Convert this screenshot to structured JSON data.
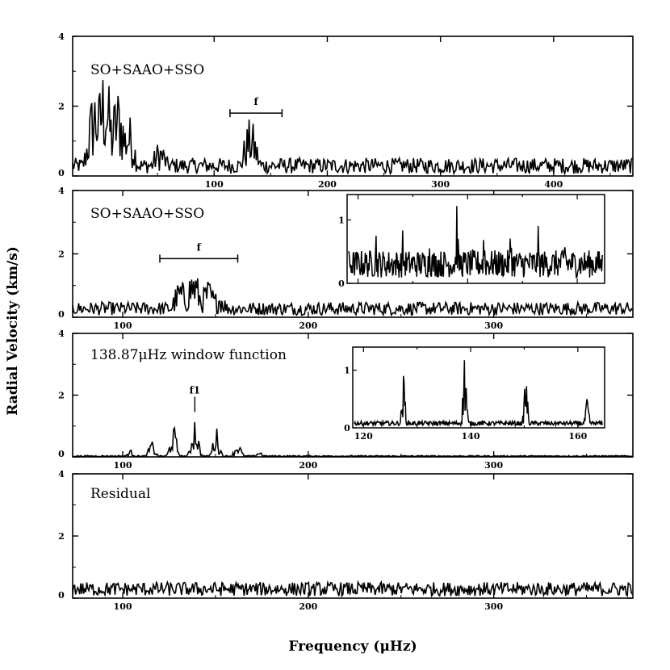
{
  "chart_data": {
    "type": "line",
    "xlabel": "Frequency (μHz)",
    "ylabel": "Radial Velocity (km/s)",
    "panels": [
      {
        "title": "SO+SAAO+SSO",
        "xlim": [
          -25,
          470
        ],
        "ylim": [
          0,
          4
        ],
        "xticks": [
          100,
          200,
          300,
          400
        ],
        "ytick_labels": [
          "0",
          "2",
          "4"
        ],
        "bracket": {
          "label": "f",
          "x": [
            114,
            160
          ],
          "y": 1.8
        },
        "series": [
          {
            "baseline": 0.45,
            "peaks": [
              [
                -5,
                2.4
              ],
              [
                3,
                2.9
              ],
              [
                15,
                2.3
              ],
              [
                24,
                1.6
              ],
              [
                52,
                0.9
              ],
              [
                132,
                1.45
              ]
            ]
          }
        ]
      },
      {
        "title": "SO+SAAO+SSO",
        "xlim": [
          73,
          375
        ],
        "ylim": [
          0,
          4
        ],
        "xticks": [
          100,
          200,
          300
        ],
        "ytick_labels": [
          "0",
          "2",
          "4"
        ],
        "bracket": {
          "label": "f",
          "x": [
            120,
            162
          ],
          "y": 1.85
        },
        "series": [
          {
            "baseline": 0.42,
            "peaks": [
              [
                138,
                1.4
              ],
              [
                131,
                1.05
              ],
              [
                146,
                1.05
              ],
              [
                152,
                0.8
              ]
            ]
          }
        ],
        "inset": {
          "xlim": [
            118,
            165
          ],
          "ylim": [
            0,
            1.4
          ],
          "ytick_labels": [
            "0",
            "1"
          ],
          "series": [
            {
              "peaks": [
                [
                  123,
                  0.85
                ],
                [
                  128,
                  0.75
                ],
                [
                  133,
                  0.85
                ],
                [
                  138,
                  1.25
                ],
                [
                  143,
                  0.9
                ],
                [
                  148,
                  0.95
                ],
                [
                  153,
                  0.8
                ],
                [
                  158,
                  0.85
                ]
              ]
            }
          ]
        }
      },
      {
        "title": "138.87μHz window function",
        "xlim": [
          73,
          375
        ],
        "ylim": [
          0,
          4
        ],
        "xticks": [
          100,
          200,
          300
        ],
        "ytick_labels": [
          "0",
          "2",
          "4"
        ],
        "marker": {
          "label": "f1",
          "x": 138.87
        },
        "series": [
          {
            "baseline": 0.04,
            "peaks": [
              [
                138.87,
                1.25
              ],
              [
                127.3,
                0.9
              ],
              [
                150.4,
                0.85
              ],
              [
                115.7,
                0.45
              ],
              [
                162.0,
                0.45
              ],
              [
                104.2,
                0.2
              ],
              [
                173.6,
                0.18
              ]
            ]
          }
        ],
        "inset": {
          "xlim": [
            118,
            165
          ],
          "ylim": [
            0,
            1.4
          ],
          "xtick_labels": [
            "120",
            "140",
            "160"
          ],
          "ytick_labels": [
            "0",
            "1"
          ],
          "series": [
            {
              "peaks": [
                [
                  127.3,
                  0.82
                ],
                [
                  138.87,
                  1.25
                ],
                [
                  150.4,
                  0.85
                ],
                [
                  162.0,
                  0.45
                ]
              ]
            }
          ]
        }
      },
      {
        "title": "Residual",
        "xlim": [
          73,
          375
        ],
        "ylim": [
          0,
          4
        ],
        "xticks": [
          100,
          200,
          300
        ],
        "ytick_labels": [
          "0",
          "2",
          "4"
        ],
        "series": [
          {
            "baseline": 0.45,
            "peaks": []
          }
        ]
      }
    ]
  }
}
